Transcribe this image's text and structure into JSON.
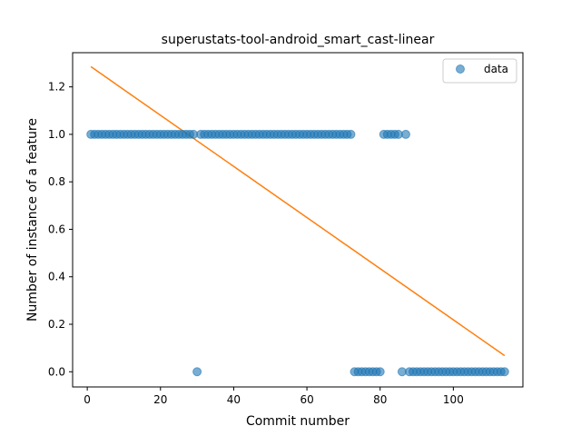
{
  "chart_data": {
    "type": "scatter",
    "title": "superustats-tool-android_smart_cast-linear",
    "xlabel": "Commit number",
    "ylabel": "Number of instance of a feature",
    "xlim": [
      -4,
      119
    ],
    "ylim": [
      -0.064,
      1.344
    ],
    "xticks": [
      0,
      20,
      40,
      60,
      80,
      100
    ],
    "yticks": [
      0.0,
      0.2,
      0.4,
      0.6,
      0.8,
      1.0,
      1.2
    ],
    "xtick_labels": [
      "0",
      "20",
      "40",
      "60",
      "80",
      "100"
    ],
    "ytick_labels": [
      "0.0",
      "0.2",
      "0.4",
      "0.6",
      "0.8",
      "1.0",
      "1.2"
    ],
    "grid": false,
    "legend_position": "top-right",
    "series": [
      {
        "name": "data",
        "kind": "scatter",
        "color": "#1f77b4",
        "points": [
          [
            1,
            1
          ],
          [
            2,
            1
          ],
          [
            3,
            1
          ],
          [
            4,
            1
          ],
          [
            5,
            1
          ],
          [
            6,
            1
          ],
          [
            7,
            1
          ],
          [
            8,
            1
          ],
          [
            9,
            1
          ],
          [
            10,
            1
          ],
          [
            11,
            1
          ],
          [
            12,
            1
          ],
          [
            13,
            1
          ],
          [
            14,
            1
          ],
          [
            15,
            1
          ],
          [
            16,
            1
          ],
          [
            17,
            1
          ],
          [
            18,
            1
          ],
          [
            19,
            1
          ],
          [
            20,
            1
          ],
          [
            21,
            1
          ],
          [
            22,
            1
          ],
          [
            23,
            1
          ],
          [
            24,
            1
          ],
          [
            25,
            1
          ],
          [
            26,
            1
          ],
          [
            27,
            1
          ],
          [
            28,
            1
          ],
          [
            29,
            1
          ],
          [
            30,
            0
          ],
          [
            31,
            1
          ],
          [
            32,
            1
          ],
          [
            33,
            1
          ],
          [
            34,
            1
          ],
          [
            35,
            1
          ],
          [
            36,
            1
          ],
          [
            37,
            1
          ],
          [
            38,
            1
          ],
          [
            39,
            1
          ],
          [
            40,
            1
          ],
          [
            41,
            1
          ],
          [
            42,
            1
          ],
          [
            43,
            1
          ],
          [
            44,
            1
          ],
          [
            45,
            1
          ],
          [
            46,
            1
          ],
          [
            47,
            1
          ],
          [
            48,
            1
          ],
          [
            49,
            1
          ],
          [
            50,
            1
          ],
          [
            51,
            1
          ],
          [
            52,
            1
          ],
          [
            53,
            1
          ],
          [
            54,
            1
          ],
          [
            55,
            1
          ],
          [
            56,
            1
          ],
          [
            57,
            1
          ],
          [
            58,
            1
          ],
          [
            59,
            1
          ],
          [
            60,
            1
          ],
          [
            61,
            1
          ],
          [
            62,
            1
          ],
          [
            63,
            1
          ],
          [
            64,
            1
          ],
          [
            65,
            1
          ],
          [
            66,
            1
          ],
          [
            67,
            1
          ],
          [
            68,
            1
          ],
          [
            69,
            1
          ],
          [
            70,
            1
          ],
          [
            71,
            1
          ],
          [
            72,
            1
          ],
          [
            73,
            0
          ],
          [
            74,
            0
          ],
          [
            75,
            0
          ],
          [
            76,
            0
          ],
          [
            77,
            0
          ],
          [
            78,
            0
          ],
          [
            79,
            0
          ],
          [
            80,
            0
          ],
          [
            81,
            1
          ],
          [
            82,
            1
          ],
          [
            83,
            1
          ],
          [
            84,
            1
          ],
          [
            85,
            1
          ],
          [
            86,
            0
          ],
          [
            87,
            1
          ],
          [
            88,
            0
          ],
          [
            89,
            0
          ],
          [
            90,
            0
          ],
          [
            91,
            0
          ],
          [
            92,
            0
          ],
          [
            93,
            0
          ],
          [
            94,
            0
          ],
          [
            95,
            0
          ],
          [
            96,
            0
          ],
          [
            97,
            0
          ],
          [
            98,
            0
          ],
          [
            99,
            0
          ],
          [
            100,
            0
          ],
          [
            101,
            0
          ],
          [
            102,
            0
          ],
          [
            103,
            0
          ],
          [
            104,
            0
          ],
          [
            105,
            0
          ],
          [
            106,
            0
          ],
          [
            107,
            0
          ],
          [
            108,
            0
          ],
          [
            109,
            0
          ],
          [
            110,
            0
          ],
          [
            111,
            0
          ],
          [
            112,
            0
          ],
          [
            113,
            0
          ],
          [
            114,
            0
          ]
        ]
      },
      {
        "name": "",
        "kind": "line",
        "color": "#ff7f0e",
        "points": [
          [
            1,
            1.285
          ],
          [
            114,
            0.068
          ]
        ]
      }
    ]
  }
}
